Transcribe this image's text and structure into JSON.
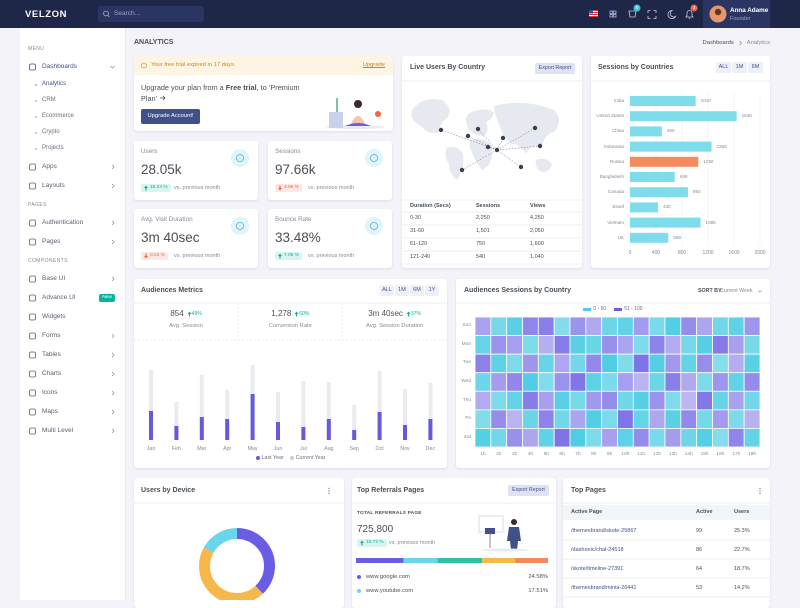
{
  "topbar": {
    "logo": "VELZON",
    "search_placeholder": "Search...",
    "cart_count": 5,
    "notification_count": 3,
    "user": {
      "name": "Anna Adame",
      "role": "Founder"
    }
  },
  "sidebar": {
    "sections": [
      {
        "title": "MENU",
        "items": [
          {
            "label": "Dashboards",
            "active": true,
            "has_submenu": true,
            "children": [
              {
                "label": "Analytics",
                "active": true
              },
              {
                "label": "CRM"
              },
              {
                "label": "Ecommerce"
              },
              {
                "label": "Crypto"
              },
              {
                "label": "Projects"
              }
            ]
          },
          {
            "label": "Apps",
            "has_submenu": true
          },
          {
            "label": "Layouts",
            "has_submenu": true
          }
        ]
      },
      {
        "title": "PAGES",
        "items": [
          {
            "label": "Authentication",
            "has_submenu": true
          },
          {
            "label": "Pages",
            "has_submenu": true
          }
        ]
      },
      {
        "title": "COMPONENTS",
        "items": [
          {
            "label": "Base UI",
            "has_submenu": true
          },
          {
            "label": "Advance UI",
            "badge": "New"
          },
          {
            "label": "Widgets"
          },
          {
            "label": "Forms",
            "has_submenu": true
          },
          {
            "label": "Tables",
            "has_submenu": true
          },
          {
            "label": "Charts",
            "has_submenu": true
          },
          {
            "label": "Icons",
            "has_submenu": true
          },
          {
            "label": "Maps",
            "has_submenu": true
          },
          {
            "label": "Multi Level",
            "has_submenu": true
          }
        ]
      }
    ]
  },
  "page_header": {
    "title": "ANALYTICS",
    "breadcrumb": [
      "Dashboards",
      "Analytics"
    ]
  },
  "alert": {
    "text": "Your free trial expired in 17 days.",
    "link": "Upgrade"
  },
  "upgrade": {
    "text": [
      "Upgrade your plan from a ",
      "Free trial",
      ", to ‘Premium Plan’"
    ],
    "button": "Upgrade Account!"
  },
  "stats": [
    {
      "label": "Users",
      "value": "28.05k",
      "change": "16.24 %",
      "trend": "up",
      "note": "vs. previous month"
    },
    {
      "label": "Sessions",
      "value": "97.66k",
      "change": "3.96 %",
      "trend": "down",
      "note": "vs. previous month"
    },
    {
      "label": "Avg. Visit Duration",
      "value": "3m 40sec",
      "change": "0.24 %",
      "trend": "down",
      "note": "vs. previous month"
    },
    {
      "label": "Bounce Rate",
      "value": "33.48%",
      "change": "7.05 %",
      "trend": "up",
      "note": "vs. previous month"
    }
  ],
  "live_users": {
    "title": "Live Users By Country",
    "button": "Export Report",
    "table": {
      "header": [
        "Duration (Secs)",
        "Sessions",
        "Views"
      ],
      "rows": [
        [
          "0-30",
          "2,250",
          "4,250"
        ],
        [
          "31-60",
          "1,501",
          "2,050"
        ],
        [
          "61-120",
          "750",
          "1,600"
        ],
        [
          "121-240",
          "540",
          "1,040"
        ]
      ]
    }
  },
  "sessions_by_countries": {
    "title": "Sessions by Countries",
    "filters": [
      "ALL",
      "1M",
      "6M"
    ],
    "type": "bar",
    "categories": [
      "India",
      "United States",
      "China",
      "Indonesia",
      "Russia",
      "Bangladesh",
      "Canada",
      "Brazil",
      "Vietnam",
      "UK"
    ],
    "values": [
      1010,
      1640,
      490,
      1255,
      1050,
      689,
      892,
      430,
      1085,
      589
    ],
    "colors": [
      "#7fdceb",
      "#7fdceb",
      "#7fdceb",
      "#7fdceb",
      "#f58a5c",
      "#7fdceb",
      "#7fdceb",
      "#7fdceb",
      "#7fdceb",
      "#7fdceb"
    ],
    "xlim": [
      0,
      2000
    ],
    "xticks": [
      0,
      400,
      800,
      1200,
      1600,
      2000
    ],
    "grid": true
  },
  "audiences_metrics": {
    "title": "Audiences Metrics",
    "filters": [
      "ALL",
      "1M",
      "6M",
      "1Y"
    ],
    "summary": [
      {
        "value": "854",
        "change": "49%",
        "label": "Avg. Session"
      },
      {
        "value": "1,278",
        "change": "60%",
        "label": "Conversion Rate"
      },
      {
        "value": "3m 40sec",
        "change": "37%",
        "label": "Avg. Session Duration"
      }
    ],
    "chart": {
      "type": "bar",
      "categories": [
        "Jan",
        "Feb",
        "Mar",
        "Apr",
        "May",
        "Jun",
        "Jul",
        "Aug",
        "Sep",
        "Oct",
        "Nov",
        "Dec"
      ],
      "series": [
        {
          "name": "Last Year",
          "color": "#6559dc",
          "values": [
            29,
            14,
            23,
            21,
            46,
            18,
            13,
            21,
            10,
            28,
            15,
            21
          ]
        },
        {
          "name": "Current Year",
          "color": "#e9ebef",
          "values": [
            70,
            38,
            65,
            50,
            75,
            48,
            59,
            58,
            35,
            69,
            51,
            57
          ]
        }
      ],
      "ylim": [
        0,
        80
      ]
    }
  },
  "sessions_heatmap": {
    "title": "Audiences Sessions by Country",
    "sort_label": "SORT BY:",
    "sort_value": "Current Week",
    "type": "heatmap",
    "ranges": [
      {
        "label": "0 - 50",
        "from": 0,
        "to": 50,
        "color": "#4fcde3"
      },
      {
        "label": "51 - 100",
        "from": 51,
        "to": 100,
        "color": "#6a5de3"
      }
    ],
    "y_categories": [
      "Sun",
      "Mon",
      "Tue",
      "Wed",
      "Thu",
      "Fri",
      "Sat"
    ],
    "x_categories": [
      "1h",
      "2h",
      "3h",
      "4h",
      "5h",
      "6h",
      "7h",
      "8h",
      "9h",
      "10h",
      "11h",
      "12h",
      "13h",
      "14h",
      "15h",
      "16h",
      "17h",
      "18h"
    ],
    "values": [
      [
        62,
        30,
        45,
        78,
        81,
        22,
        70,
        58,
        35,
        40,
        66,
        28,
        48,
        74,
        60,
        33,
        41,
        69
      ],
      [
        38,
        71,
        64,
        27,
        55,
        83,
        44,
        36,
        72,
        61,
        25,
        79,
        57,
        30,
        46,
        84,
        63,
        29
      ],
      [
        80,
        42,
        26,
        68,
        37,
        59,
        31,
        76,
        50,
        24,
        88,
        47,
        67,
        39,
        73,
        21,
        56,
        45
      ],
      [
        34,
        65,
        77,
        49,
        23,
        71,
        86,
        43,
        28,
        64,
        52,
        35,
        81,
        58,
        27,
        69,
        40,
        75
      ],
      [
        57,
        26,
        39,
        82,
        63,
        45,
        29,
        67,
        74,
        33,
        46,
        70,
        24,
        51,
        85,
        37,
        62,
        31
      ],
      [
        23,
        74,
        53,
        36,
        79,
        32,
        61,
        48,
        27,
        87,
        38,
        59,
        44,
        76,
        30,
        66,
        25,
        54
      ],
      [
        46,
        31,
        72,
        60,
        41,
        88,
        50,
        26,
        63,
        42,
        75,
        28,
        65,
        34,
        47,
        22,
        78,
        39
      ]
    ]
  },
  "users_by_device": {
    "title": "Users by Device",
    "type": "donut",
    "values": [
      38,
      45,
      17
    ],
    "colors": [
      "#6a5de3",
      "#f7b84b",
      "#6ad6ec"
    ]
  },
  "top_referrals": {
    "title": "Top Referrals Pages",
    "button": "Export Report",
    "label": "TOTAL REFERRALS PAGE",
    "total": "725,800",
    "change": "15.72 %",
    "note": "vs. previous month",
    "segments": {
      "values": [
        24.58,
        17.51,
        23,
        17,
        17
      ],
      "colors": [
        "#6a5de3",
        "#6ad6ec",
        "#2bc3a2",
        "#f7b84b",
        "#f38a5b"
      ]
    },
    "sites": [
      {
        "name": "www.google.com",
        "share": "24.58%"
      },
      {
        "name": "www.youtube.com",
        "share": "17.51%"
      }
    ]
  },
  "top_pages": {
    "title": "Top Pages",
    "header": [
      "Active Page",
      "Active",
      "Users"
    ],
    "rows": [
      [
        "/themesbrand/skote-25867",
        "99",
        "25.3%"
      ],
      [
        "/dashonic/chat-24518",
        "86",
        "22.7%"
      ],
      [
        "/skote/timeline-27391",
        "64",
        "18.7%"
      ],
      [
        "/themesbrand/minia-26441",
        "53",
        "14.2%"
      ]
    ]
  }
}
